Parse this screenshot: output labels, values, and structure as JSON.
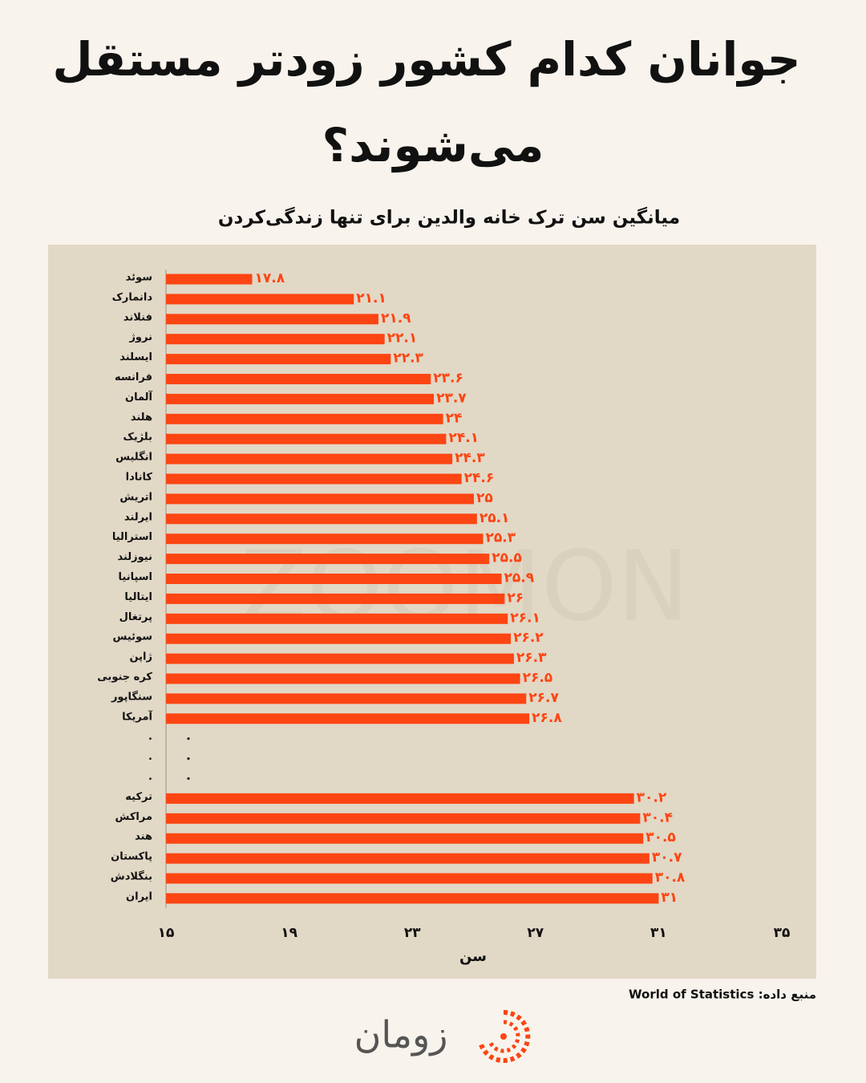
{
  "chart_data": {
    "type": "bar",
    "orientation": "horizontal",
    "title": [
      "جوانان کدام کشور زودتر مستقل",
      "می‌شوند؟"
    ],
    "subtitle": "میانگین سن ترک خانه والدین برای تنها زندگی‌کردن",
    "x_label": "سن",
    "watermark": "ZOOMON",
    "source": "منبع داده: World of Statistics",
    "brand": "زومان",
    "color": "#fc4512",
    "categories": [
      "سوئد",
      "دانمارک",
      "فنلاند",
      "نروژ",
      "ایسلند",
      "فرانسه",
      "آلمان",
      "هلند",
      "بلژیک",
      "انگلیس",
      "کانادا",
      "اتریش",
      "ایرلند",
      "استرالیا",
      "نیوزلند",
      "اسپانیا",
      "ایتالیا",
      "پرتغال",
      "سوئیس",
      "ژاپن",
      "کره جنوبی",
      "سنگاپور",
      "آمریکا",
      ".",
      ".",
      ".",
      "ترکیه",
      "مراکش",
      "هند",
      "پاکستان",
      "بنگلادش",
      "ایران"
    ],
    "values": [
      17.8,
      21.1,
      21.9,
      22.1,
      22.3,
      23.6,
      23.7,
      24,
      24.1,
      24.3,
      24.6,
      25,
      25.1,
      25.3,
      25.5,
      25.9,
      26,
      26.1,
      26.2,
      26.3,
      26.5,
      26.7,
      26.8,
      null,
      null,
      null,
      30.2,
      30.4,
      30.5,
      30.7,
      30.8,
      31
    ],
    "value_labels": [
      "۱۷.۸",
      "۲۱.۱",
      "۲۱.۹",
      "۲۲.۱",
      "۲۲.۳",
      "۲۳.۶",
      "۲۳.۷",
      "۲۴",
      "۲۴.۱",
      "۲۴.۳",
      "۲۴.۶",
      "۲۵",
      "۲۵.۱",
      "۲۵.۳",
      "۲۵.۵",
      "۲۵.۹",
      "۲۶",
      "۲۶.۱",
      "۲۶.۲",
      "۲۶.۳",
      "۲۶.۵",
      "۲۶.۷",
      "۲۶.۸",
      null,
      null,
      null,
      "۳۰.۲",
      "۳۰.۴",
      "۳۰.۵",
      "۳۰.۷",
      "۳۰.۸",
      "۳۱"
    ],
    "xlim": [
      15,
      35
    ],
    "xticks": [
      {
        "value": 15,
        "label": "۱۵"
      },
      {
        "value": 19,
        "label": "۱۹"
      },
      {
        "value": 23,
        "label": "۲۳"
      },
      {
        "value": 27,
        "label": "۲۷"
      },
      {
        "value": 31,
        "label": "۳۱"
      },
      {
        "value": 35,
        "label": "۳۵"
      }
    ],
    "grid": false
  }
}
